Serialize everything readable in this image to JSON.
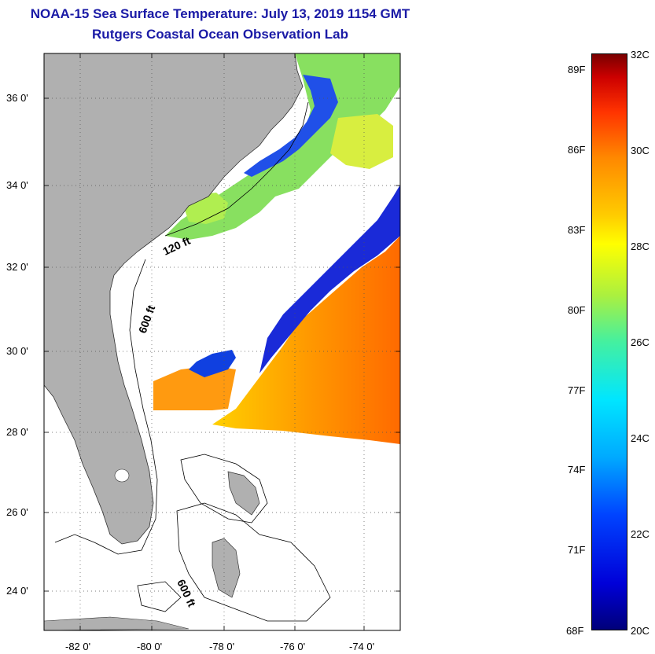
{
  "title_line1": "NOAA-15 Sea Surface Temperature:  July 13, 2019 1154 GMT",
  "title_line2": "Rutgers Coastal Ocean Observation Lab",
  "latitude_labels": [
    "36 0'",
    "34 0'",
    "32 0'",
    "30 0'",
    "28 0'",
    "26 0'",
    "24 0'"
  ],
  "longitude_labels": [
    "-82 0'",
    "-80 0'",
    "-78 0'",
    "-76 0'",
    "-74 0'"
  ],
  "contour_labels": [
    "120 ft",
    "600 ft",
    "600 ft"
  ],
  "colorbar": {
    "fahrenheit_labels": [
      "89F",
      "86F",
      "83F",
      "80F",
      "77F",
      "74F",
      "71F",
      "68F"
    ],
    "celsius_labels": [
      "32C",
      "30C",
      "28C",
      "26C",
      "24C",
      "22C",
      "20C"
    ],
    "range_c": [
      20,
      32
    ]
  },
  "colors": {
    "title": "#1a1aa6",
    "land": "#b0b0b0",
    "cloud": "#ffffff"
  }
}
